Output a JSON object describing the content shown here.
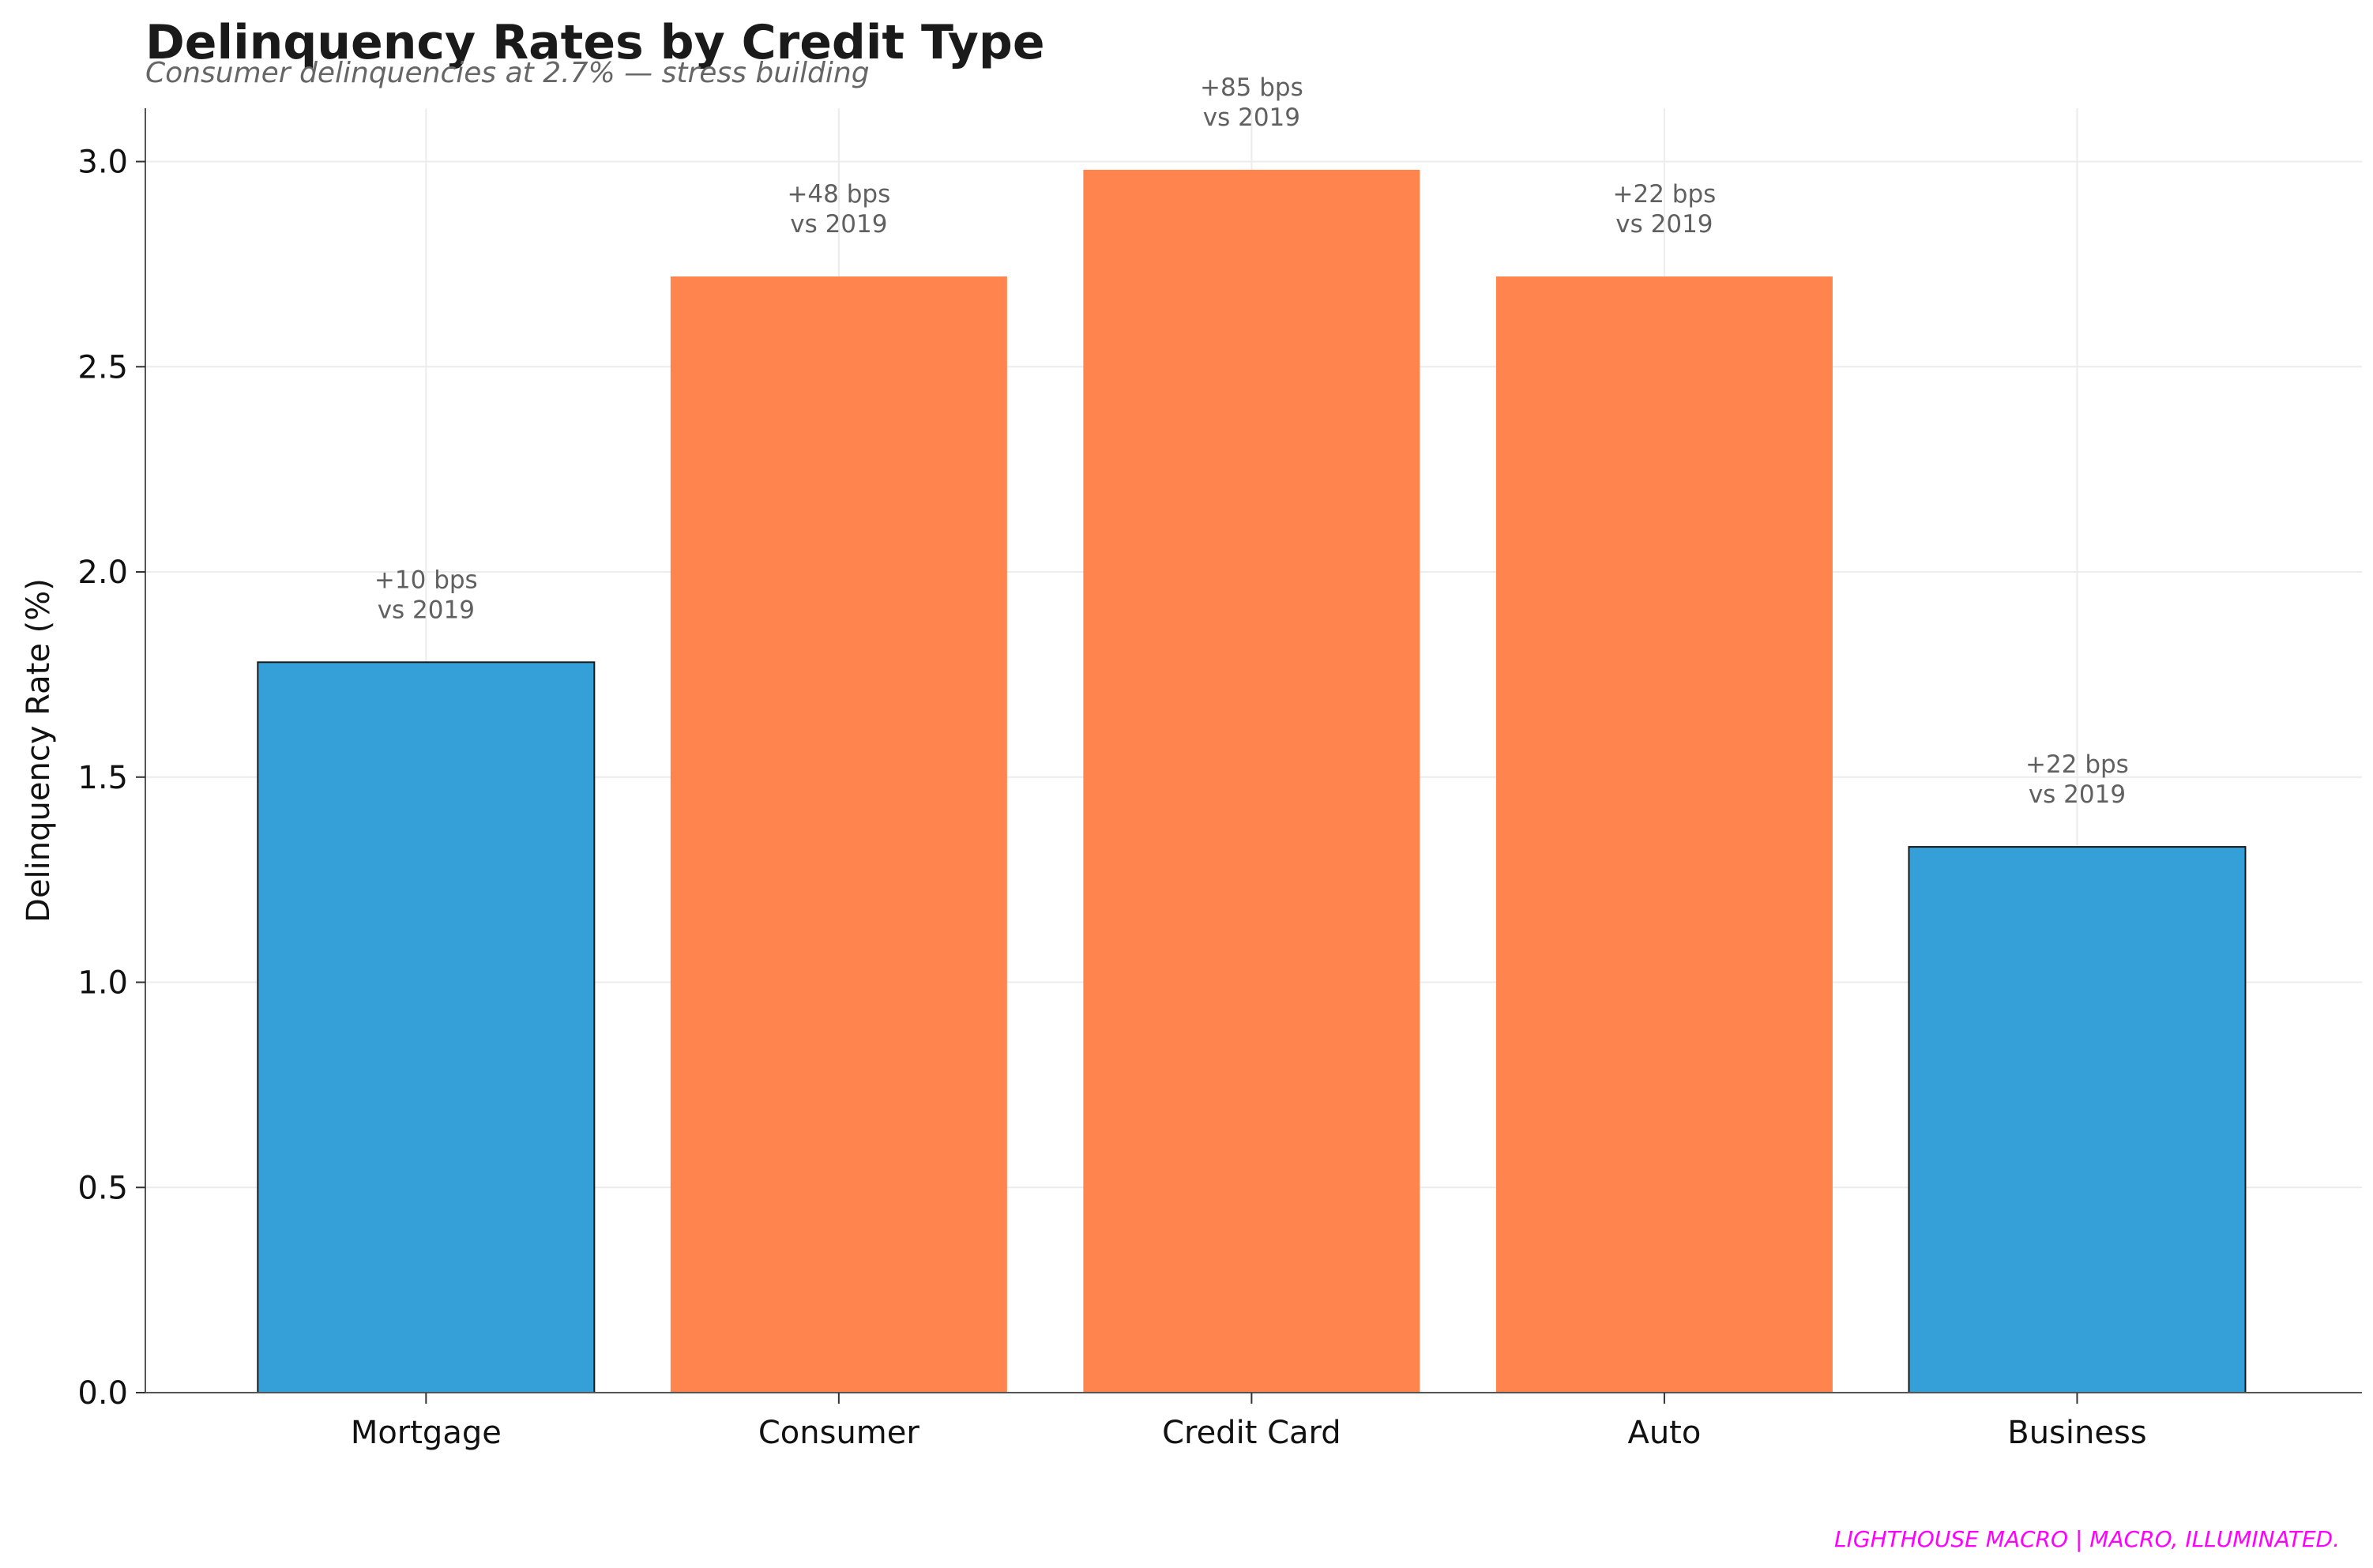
{
  "chart_data": {
    "type": "bar",
    "title": "Delinquency Rates by Credit Type",
    "subtitle": "Consumer delinquencies at 2.7% — stress building",
    "xlabel": "",
    "ylabel": "Delinquency Rate (%)",
    "ylim": [
      0,
      3.13
    ],
    "yticks": [
      "0.0",
      "0.5",
      "1.0",
      "1.5",
      "2.0",
      "2.5",
      "3.0"
    ],
    "grid": true,
    "categories": [
      "Mortgage",
      "Consumer",
      "Credit Card",
      "Auto",
      "Business"
    ],
    "values": [
      1.78,
      2.72,
      2.98,
      2.72,
      1.33
    ],
    "bar_colors": [
      "#359fd8",
      "#ff844d",
      "#ff844d",
      "#ff844d",
      "#359fd8"
    ],
    "annotations": [
      [
        "+10 bps",
        "vs 2019"
      ],
      [
        "+48 bps",
        "vs 2019"
      ],
      [
        "+85 bps",
        "vs 2019"
      ],
      [
        "+22 bps",
        "vs 2019"
      ],
      [
        "+22 bps",
        "vs 2019"
      ]
    ]
  },
  "watermark": "LIGHTHOUSE MACRO | MACRO, ILLUMINATED."
}
